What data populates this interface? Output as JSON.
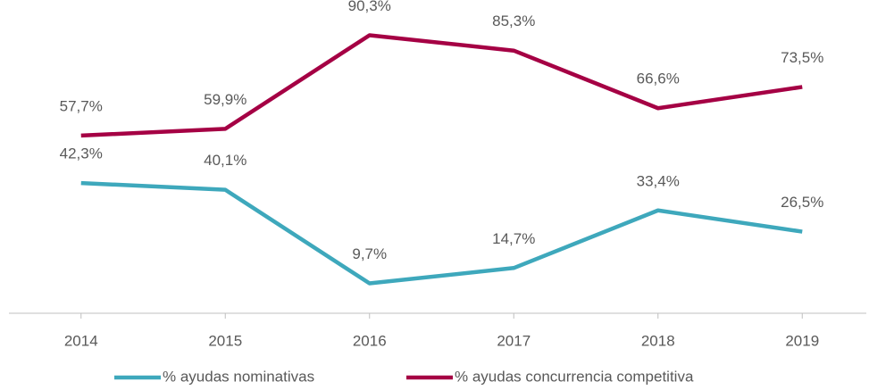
{
  "chart_data": {
    "type": "line",
    "categories": [
      "2014",
      "2015",
      "2016",
      "2017",
      "2018",
      "2019"
    ],
    "series": [
      {
        "name": "% ayudas nominativas",
        "color": "#3ea8bc",
        "values": [
          42.3,
          40.1,
          9.7,
          14.7,
          33.4,
          26.5
        ],
        "value_labels": [
          "42,3%",
          "40,1%",
          "9,7%",
          "14,7%",
          "33,4%",
          "26,5%"
        ]
      },
      {
        "name": "% ayudas concurrencia competitiva",
        "color": "#a50044",
        "values": [
          57.7,
          59.9,
          90.3,
          85.3,
          66.6,
          73.5
        ],
        "value_labels": [
          "57,7%",
          "59,9%",
          "90,3%",
          "85,3%",
          "66,6%",
          "73,5%"
        ]
      }
    ],
    "ylim": [
      0,
      100
    ],
    "grid": false,
    "legend": "bottom"
  }
}
